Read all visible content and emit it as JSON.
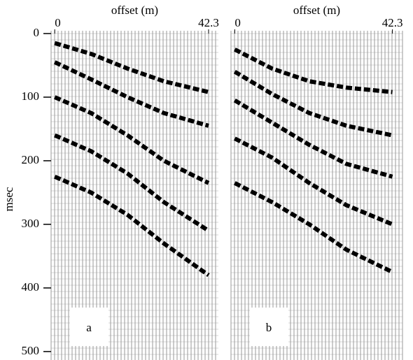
{
  "chart_data": [
    {
      "type": "wiggle",
      "panel_label": "a",
      "xlabel": "offset (m)",
      "ylabel": "msec",
      "xlim": [
        -1,
        45
      ],
      "xticks": [
        0,
        42.3
      ],
      "ylim": [
        0,
        510
      ],
      "yticks": [
        0,
        100,
        200,
        300,
        400,
        500
      ],
      "y_inverted": true,
      "event_color": "#000000",
      "events": [
        {
          "x": [
            0,
            10,
            20,
            30,
            42.3
          ],
          "y": [
            15,
            32,
            55,
            75,
            92
          ]
        },
        {
          "x": [
            0,
            10,
            20,
            30,
            42.3
          ],
          "y": [
            45,
            72,
            100,
            125,
            145
          ]
        },
        {
          "x": [
            0,
            10,
            20,
            30,
            42.3
          ],
          "y": [
            100,
            125,
            160,
            200,
            235
          ]
        },
        {
          "x": [
            0,
            10,
            20,
            30,
            42.3
          ],
          "y": [
            160,
            185,
            220,
            265,
            310
          ]
        },
        {
          "x": [
            0,
            10,
            20,
            30,
            42.3
          ],
          "y": [
            225,
            250,
            285,
            330,
            380
          ]
        }
      ]
    },
    {
      "type": "wiggle",
      "panel_label": "b",
      "xlabel": "offset (m)",
      "xlim": [
        -1,
        45
      ],
      "xticks": [
        0,
        42.3
      ],
      "ylim": [
        0,
        510
      ],
      "y_inverted": true,
      "event_color": "#000000",
      "events": [
        {
          "x": [
            0,
            10,
            20,
            30,
            42.3
          ],
          "y": [
            25,
            55,
            75,
            85,
            92
          ]
        },
        {
          "x": [
            0,
            10,
            20,
            30,
            42.3
          ],
          "y": [
            60,
            95,
            125,
            145,
            160
          ]
        },
        {
          "x": [
            0,
            10,
            20,
            30,
            42.3
          ],
          "y": [
            105,
            140,
            175,
            205,
            225
          ]
        },
        {
          "x": [
            0,
            10,
            20,
            30,
            42.3
          ],
          "y": [
            165,
            195,
            235,
            270,
            300
          ]
        },
        {
          "x": [
            0,
            10,
            20,
            30,
            42.3
          ],
          "y": [
            235,
            265,
            300,
            340,
            375
          ]
        }
      ]
    }
  ]
}
